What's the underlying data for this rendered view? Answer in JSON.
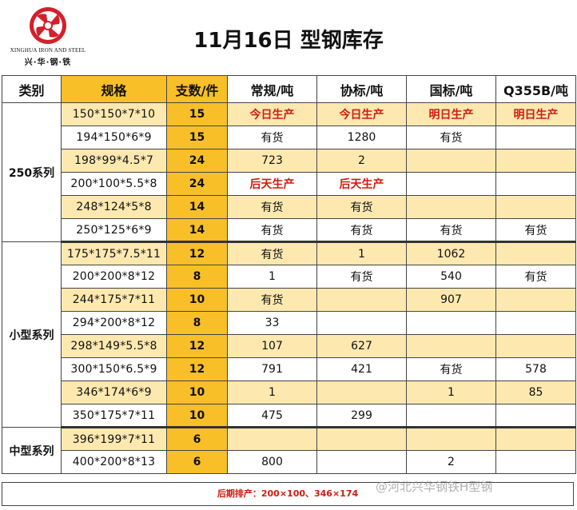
{
  "header": {
    "logo_en": "XINGHUA IRON AND STEEL",
    "logo_cn": "兴·华·钢·铁",
    "title": "11月16日 型钢库存"
  },
  "columns": [
    "类别",
    "规格",
    "支数/件",
    "常规/吨",
    "协标/吨",
    "国标/吨",
    "Q355B/吨"
  ],
  "groups": [
    {
      "name": "250系列",
      "rows": [
        {
          "spec": "150*150*7*10",
          "count": "15",
          "regular": "今日生产",
          "association": "今日生产",
          "national": "明日生产",
          "q355b": "明日生产",
          "red": [
            true,
            true,
            true,
            true
          ]
        },
        {
          "spec": "194*150*6*9",
          "count": "15",
          "regular": "有货",
          "association": "1280",
          "national": "有货",
          "q355b": ""
        },
        {
          "spec": "198*99*4.5*7",
          "count": "24",
          "regular": "723",
          "association": "2",
          "national": "",
          "q355b": ""
        },
        {
          "spec": "200*100*5.5*8",
          "count": "24",
          "regular": "后天生产",
          "association": "后天生产",
          "national": "",
          "q355b": "",
          "red": [
            true,
            true,
            false,
            false
          ]
        },
        {
          "spec": "248*124*5*8",
          "count": "14",
          "regular": "有货",
          "association": "有货",
          "national": "",
          "q355b": ""
        },
        {
          "spec": "250*125*6*9",
          "count": "14",
          "regular": "有货",
          "association": "有货",
          "national": "有货",
          "q355b": "有货"
        }
      ]
    },
    {
      "name": "小型系列",
      "rows": [
        {
          "spec": "175*175*7.5*11",
          "count": "12",
          "regular": "有货",
          "association": "1",
          "national": "1062",
          "q355b": ""
        },
        {
          "spec": "200*200*8*12",
          "count": "8",
          "regular": "1",
          "association": "有货",
          "national": "540",
          "q355b": "有货"
        },
        {
          "spec": "244*175*7*11",
          "count": "10",
          "regular": "有货",
          "association": "",
          "national": "907",
          "q355b": ""
        },
        {
          "spec": "294*200*8*12",
          "count": "8",
          "regular": "33",
          "association": "",
          "national": "",
          "q355b": ""
        },
        {
          "spec": "298*149*5.5*8",
          "count": "12",
          "regular": "107",
          "association": "627",
          "national": "",
          "q355b": ""
        },
        {
          "spec": "300*150*6.5*9",
          "count": "12",
          "regular": "791",
          "association": "421",
          "national": "有货",
          "q355b": "578"
        },
        {
          "spec": "346*174*6*9",
          "count": "10",
          "regular": "1",
          "association": "",
          "national": "1",
          "q355b": "85"
        },
        {
          "spec": "350*175*7*11",
          "count": "10",
          "regular": "475",
          "association": "299",
          "national": "",
          "q355b": ""
        }
      ]
    },
    {
      "name": "中型系列",
      "rows": [
        {
          "spec": "396*199*7*11",
          "count": "6",
          "regular": "",
          "association": "",
          "national": "",
          "q355b": ""
        },
        {
          "spec": "400*200*8*13",
          "count": "6",
          "regular": "800",
          "association": "",
          "national": "2",
          "q355b": ""
        }
      ]
    }
  ],
  "footer": {
    "note": "后期排产：200×100、346×174"
  },
  "watermark": "@河北兴华钢铁H型钢",
  "colors": {
    "accent_orange": "#f9bf28",
    "stripe": "#fde9b0",
    "highlight_red": "#d11a0e",
    "logo_red": "#d3202a"
  }
}
